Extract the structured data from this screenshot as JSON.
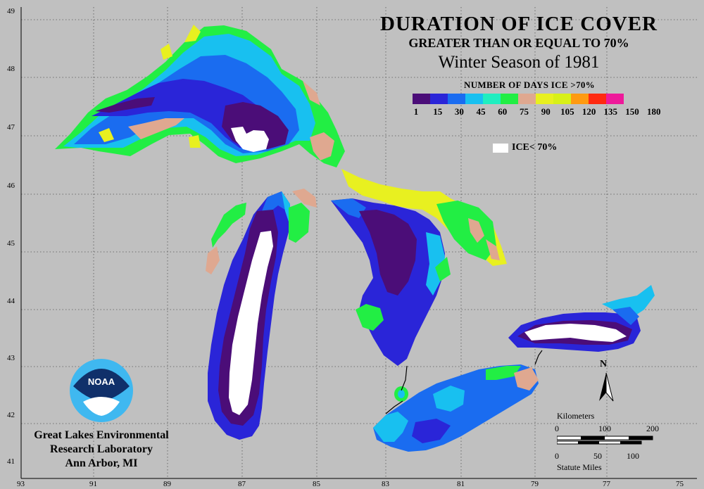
{
  "title": {
    "line1": "DURATION OF ICE COVER",
    "line2": "GREATER THAN OR EQUAL TO 70%",
    "line3": "Winter Season of 1981"
  },
  "legend": {
    "title": "NUMBER OF DAYS ICE >70%",
    "colors": [
      "#4b0d78",
      "#2a25d8",
      "#1a6cf0",
      "#18c0f0",
      "#20eec0",
      "#22ee44",
      "#dfa890",
      "#e8f020",
      "#d8f018",
      "#ff9a10",
      "#ff2a10",
      "#ee1a9a"
    ],
    "ticks": [
      "1",
      "15",
      "30",
      "45",
      "60",
      "75",
      "90",
      "105",
      "120",
      "135",
      "150",
      "180"
    ],
    "ice_label": "ICE< 70%"
  },
  "graticule": {
    "latitudes": [
      "49",
      "48",
      "47",
      "46",
      "45",
      "44",
      "43",
      "42",
      "41"
    ],
    "longitudes": [
      "93",
      "91",
      "89",
      "87",
      "85",
      "83",
      "81",
      "79",
      "77",
      "75"
    ]
  },
  "noaa_logo_text": "NOAA",
  "lab": {
    "line1": "Great Lakes Environmental",
    "line2": "Research Laboratory",
    "line3": "Ann Arbor, MI"
  },
  "north_arrow": "N",
  "scale": {
    "km_title": "Kilometers",
    "km_ticks": [
      "0",
      "100",
      "200"
    ],
    "mi_ticks": [
      "0",
      "50",
      "100"
    ],
    "mi_title": "Statute Miles"
  }
}
